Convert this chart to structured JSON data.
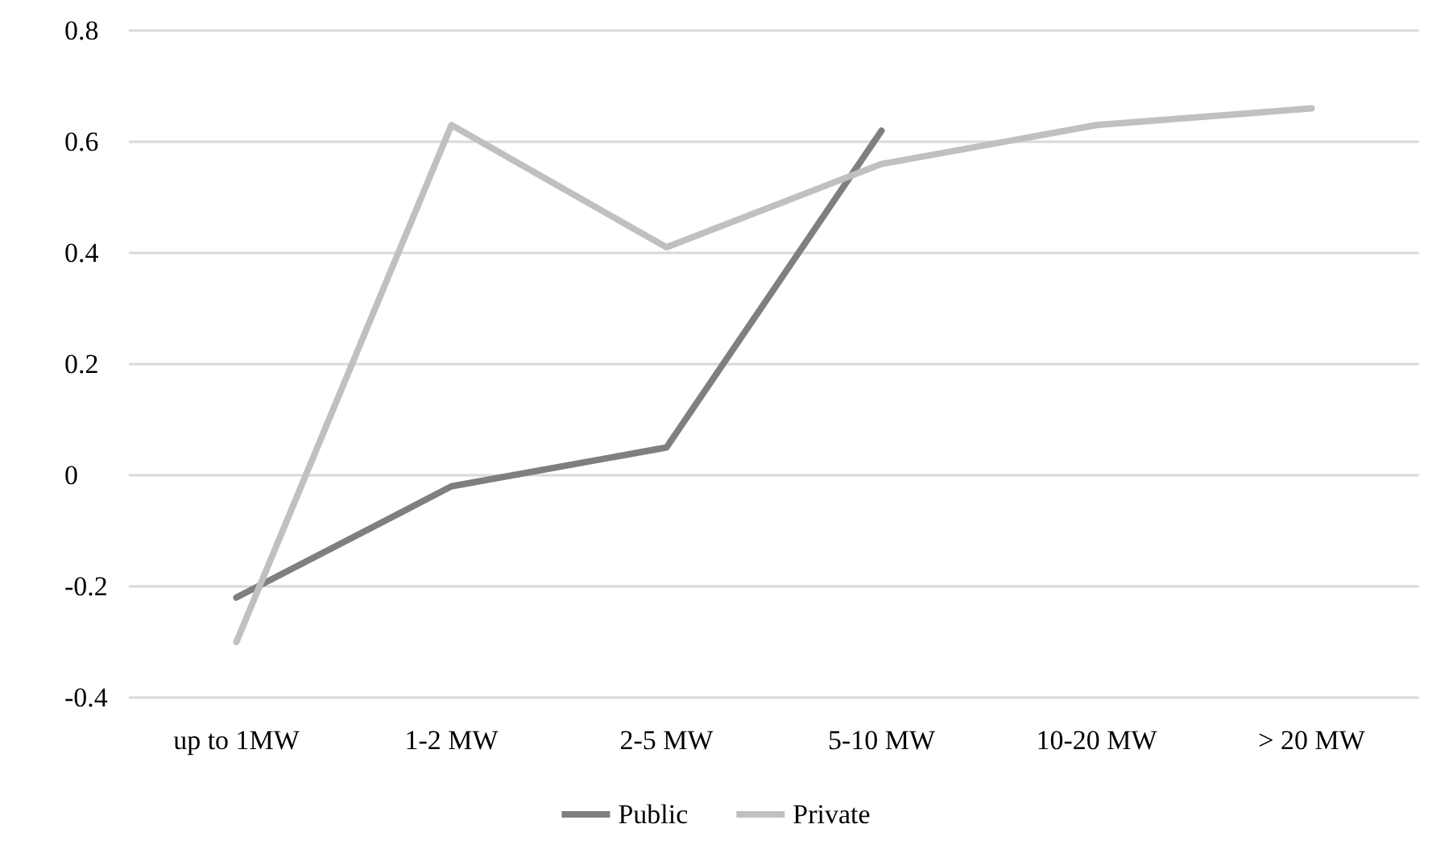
{
  "chart_data": {
    "type": "line",
    "categories": [
      "up to 1MW",
      "1-2 MW",
      "2-5 MW",
      "5-10 MW",
      "10-20 MW",
      "> 20 MW"
    ],
    "series": [
      {
        "name": "Public",
        "color": "#7f7f7f",
        "values": [
          -0.22,
          -0.02,
          0.05,
          0.62,
          null,
          null
        ]
      },
      {
        "name": "Private",
        "color": "#c0c0c0",
        "values": [
          -0.3,
          0.63,
          0.41,
          0.56,
          0.63,
          0.66
        ]
      }
    ],
    "ylim": [
      -0.4,
      0.8
    ],
    "yticks": [
      -0.4,
      -0.2,
      0,
      0.2,
      0.4,
      0.6,
      0.8
    ],
    "grid": "y",
    "legend": "bottom",
    "marker": "none",
    "line_style": "solid"
  }
}
